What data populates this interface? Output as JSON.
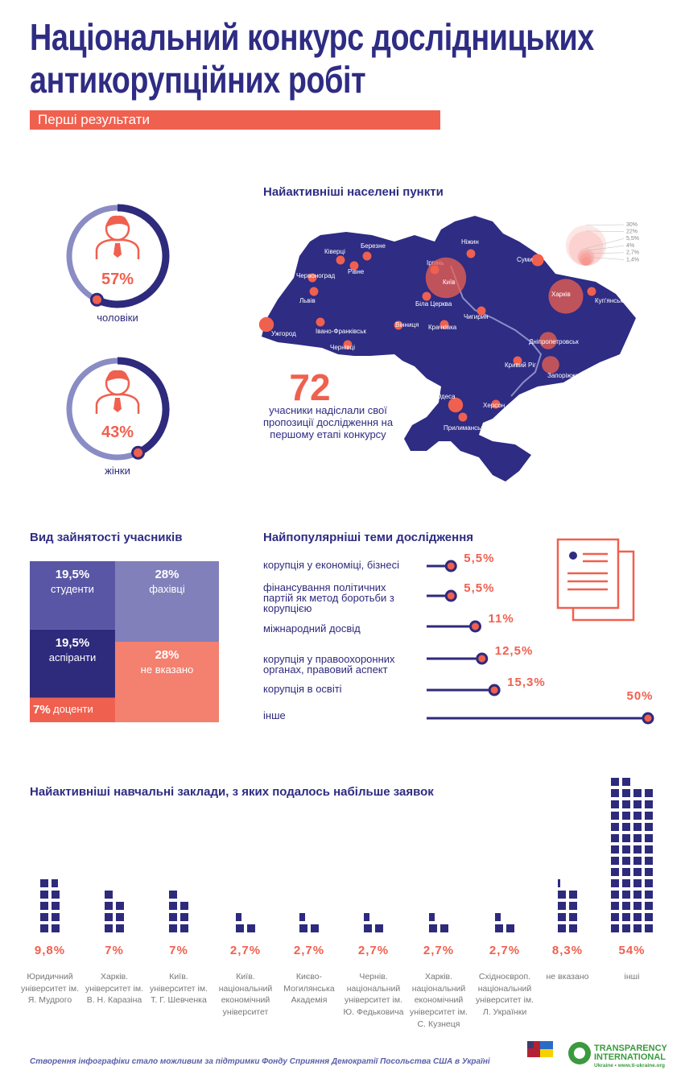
{
  "header": {
    "title": [
      "Національний конкурс дослідницьких",
      "антикорупційних робіт"
    ],
    "subtitle": "Перші результати"
  },
  "chart_data": [
    {
      "type": "gauge",
      "categories": [
        "чоловіки",
        "жінки"
      ],
      "values": [
        57,
        43
      ],
      "value_labels": [
        "57%",
        "43%"
      ],
      "ylim": [
        0,
        100
      ],
      "color": "#2e2a7c"
    },
    {
      "type": "bubble-map",
      "title": "Найактивніші населені пункти",
      "categories": [
        "Ківерці",
        "Березне",
        "Рівне",
        "Ніжин",
        "Суми",
        "Червоноград",
        "Ірпінь",
        "Київ",
        "Львів",
        "Харків",
        "Куп'янськ",
        "Біла Церква",
        "Ужгород",
        "Івано-Франківськ",
        "Вінниця",
        "Крачківка",
        "Чигирин",
        "Чернівці",
        "Дніпропетровськ",
        "Кривий Ріг",
        "Запоріжжя",
        "Одеса",
        "Херсон",
        "Прилиманське"
      ],
      "values": [
        1.4,
        1.4,
        1.4,
        1.4,
        2.7,
        1.4,
        1.4,
        30,
        1.4,
        22,
        1.4,
        1.4,
        4,
        1.4,
        1.4,
        1.4,
        1.4,
        1.4,
        5.5,
        1.4,
        5.5,
        4,
        1.4,
        1.4
      ],
      "color": "#f0604f",
      "size_legend": [
        {
          "value": 30,
          "label": "30%"
        },
        {
          "value": 22,
          "label": "22%"
        },
        {
          "value": 5.5,
          "label": "5,5%"
        },
        {
          "value": 4,
          "label": "4%"
        },
        {
          "value": 2.7,
          "label": "2,7%"
        },
        {
          "value": 1.4,
          "label": "1,4%"
        }
      ]
    },
    {
      "type": "treemap",
      "title": "Вид зайнятості учасників",
      "categories": [
        "студенти",
        "аспіранти",
        "доценти",
        "фахівці",
        "не вказано"
      ],
      "values": [
        19.5,
        19.5,
        7,
        28,
        28
      ],
      "value_labels": [
        "19,5%",
        "19,5%",
        "7%",
        "28%",
        "28%"
      ],
      "colors": [
        "#5a56a6",
        "#2e2a7c",
        "#f0604f",
        "#8280ba",
        "#f4806f"
      ]
    },
    {
      "type": "lollipop",
      "title": "Найпопулярніші теми дослідження",
      "categories": [
        "корупція у економіці, бізнесі",
        "фінансування політичних партій як метод боротьби з корупцією",
        "міжнародний досвід",
        "корупція у правоохоронних органах, правовий аспект",
        "корупція в освіті",
        "інше"
      ],
      "values": [
        5.5,
        5.5,
        11,
        12.5,
        15.3,
        50
      ],
      "value_labels": [
        "5,5%",
        "5,5%",
        "11%",
        "12,5%",
        "15,3%",
        "50%"
      ],
      "xlim": [
        0,
        50
      ],
      "color": "#2e2a7c"
    },
    {
      "type": "pictogram",
      "title": "Найактивніші навчальні заклади, з яких подалось набільше заявок",
      "categories": [
        "Юридичний університет ім. Я. Мудрого",
        "Харків. університет ім. В. Н. Каразіна",
        "Київ. університет ім. Т. Г. Шевченка",
        "Київ. національний економічний університет",
        "Києво-Могилянська Академія",
        "Чернів. національний університет ім. Ю. Федьковича",
        "Харків. національний економічний університет ім. С. Кузнеця",
        "Східноєвроп. національний університет ім. Л. Українки",
        "не вказано",
        "інші"
      ],
      "values": [
        9.8,
        7,
        7,
        2.7,
        2.7,
        2.7,
        2.7,
        2.7,
        8.3,
        54
      ],
      "value_labels": [
        "9,8%",
        "7%",
        "7%",
        "2,7%",
        "2,7%",
        "2,7%",
        "2,7%",
        "2,7%",
        "8,3%",
        "54%"
      ],
      "color": "#2e2a7c"
    }
  ],
  "summary": {
    "value": 72,
    "caption": "учасники надіслали свої пропозиції дослідження на першому етапі конкурсу"
  },
  "footer": {
    "text": "Створення інфографіки стало можливим за підтримки Фонду Сприяння Демократії Посольства США в Україні",
    "logo_name": "TRANSPARENCY INTERNATIONAL",
    "logo_subtitle": "Ukraine • www.ti-ukraine.org"
  }
}
